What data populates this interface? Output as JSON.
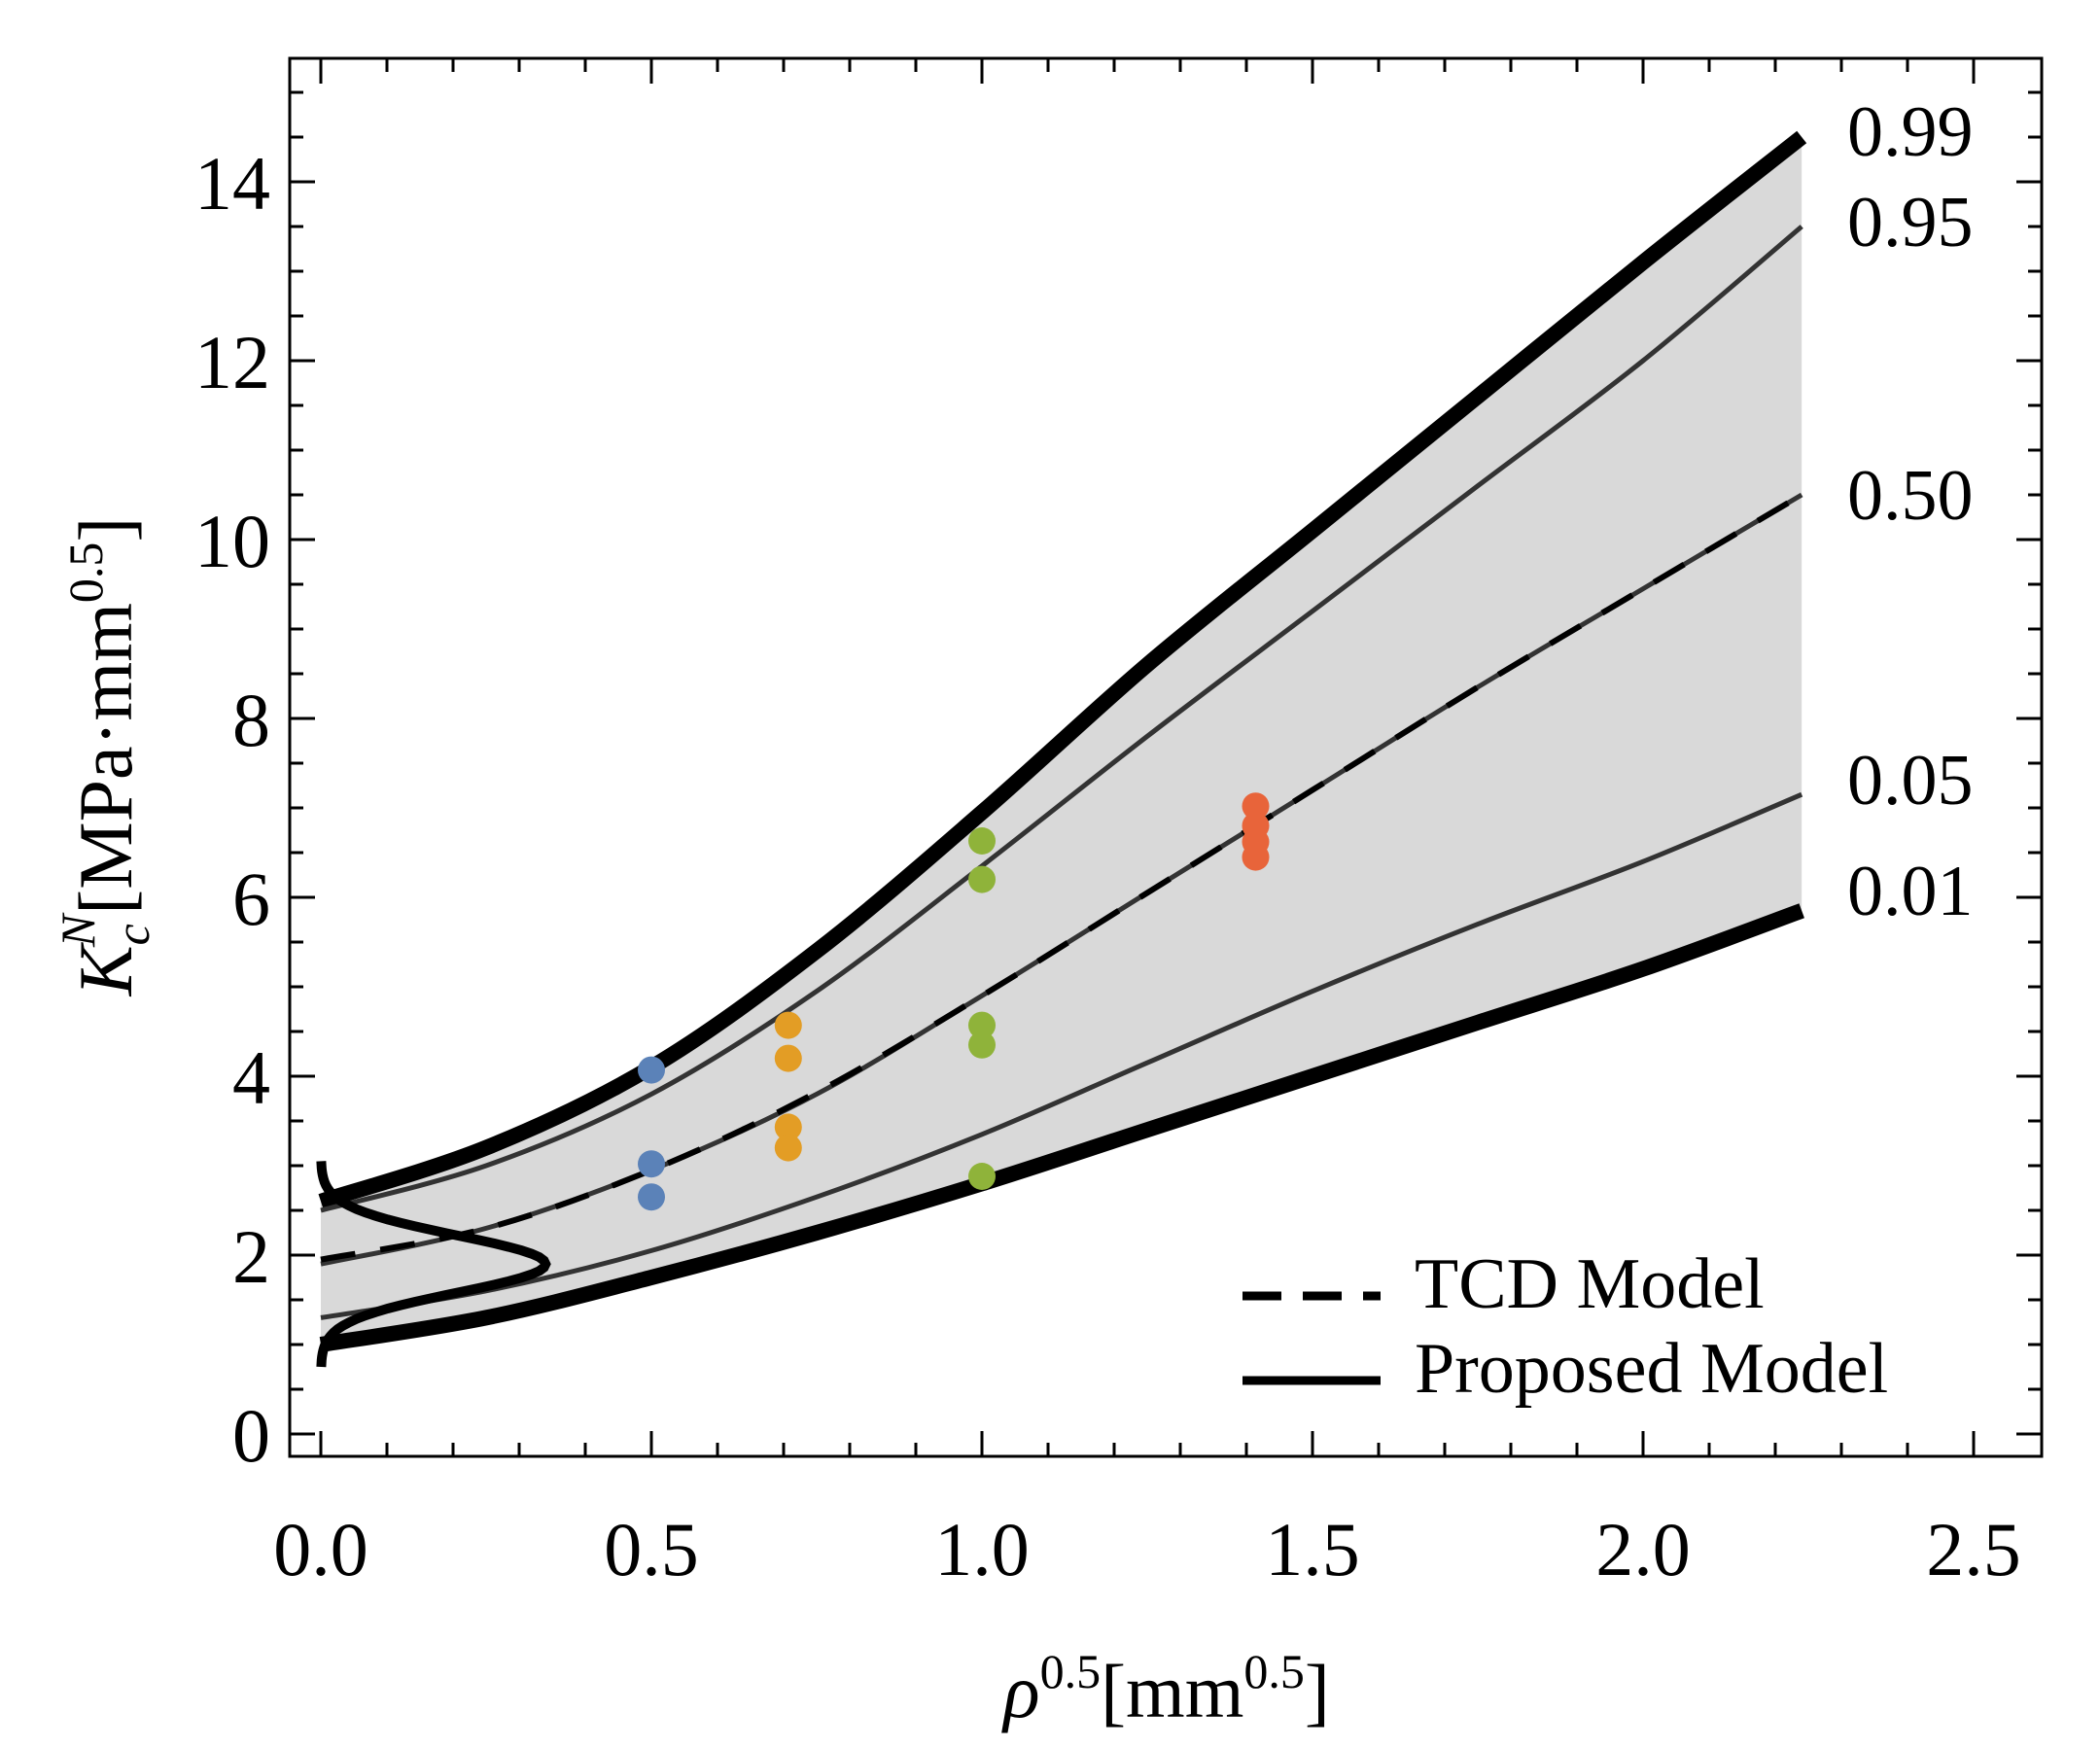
{
  "chart_data": {
    "type": "line",
    "xlabel": {
      "base": "ρ",
      "exp": "0.5",
      "unit_open": "[mm",
      "unit_exp": "0.5",
      "unit_close": "]"
    },
    "ylabel": {
      "base": "K",
      "sub": "c",
      "sup": "N",
      "unit_open": "[MPa·mm",
      "unit_exp": "0.5",
      "unit_close": "]"
    },
    "xlim": [
      -0.05,
      2.6
    ],
    "ylim": [
      -0.3,
      15.3
    ],
    "xticks": [
      "0.0",
      "0.5",
      "1.0",
      "1.5",
      "2.0",
      "2.5"
    ],
    "yticks": [
      "0",
      "2",
      "4",
      "6",
      "8",
      "10",
      "12",
      "14"
    ],
    "grid": false,
    "legend_position": "bottom-right",
    "legend": [
      {
        "label": "TCD Model",
        "style": "dashed"
      },
      {
        "label": "Proposed Model",
        "style": "solid"
      }
    ],
    "quantile_labels": [
      "0.99",
      "0.95",
      "0.50",
      "0.05",
      "0.01"
    ],
    "quantile_curves": [
      {
        "name": "0.99",
        "points": [
          [
            0.0,
            2.6
          ],
          [
            0.25,
            3.2
          ],
          [
            0.5,
            4.1
          ],
          [
            0.75,
            5.4
          ],
          [
            1.0,
            6.95
          ],
          [
            1.25,
            8.6
          ],
          [
            1.5,
            10.1
          ],
          [
            1.75,
            11.6
          ],
          [
            2.0,
            13.1
          ],
          [
            2.24,
            14.5
          ]
        ]
      },
      {
        "name": "0.95",
        "points": [
          [
            0.0,
            2.5
          ],
          [
            0.25,
            3.0
          ],
          [
            0.5,
            3.8
          ],
          [
            0.75,
            4.95
          ],
          [
            1.0,
            6.35
          ],
          [
            1.25,
            7.8
          ],
          [
            1.5,
            9.2
          ],
          [
            1.75,
            10.6
          ],
          [
            2.0,
            12.0
          ],
          [
            2.24,
            13.5
          ]
        ]
      },
      {
        "name": "0.50",
        "points": [
          [
            0.0,
            1.9
          ],
          [
            0.25,
            2.3
          ],
          [
            0.5,
            2.95
          ],
          [
            0.75,
            3.8
          ],
          [
            1.0,
            4.9
          ],
          [
            1.25,
            6.05
          ],
          [
            1.5,
            7.2
          ],
          [
            1.75,
            8.35
          ],
          [
            2.0,
            9.45
          ],
          [
            2.24,
            10.5
          ]
        ]
      },
      {
        "name": "0.05",
        "points": [
          [
            0.0,
            1.3
          ],
          [
            0.25,
            1.6
          ],
          [
            0.5,
            2.05
          ],
          [
            0.75,
            2.65
          ],
          [
            1.0,
            3.35
          ],
          [
            1.25,
            4.15
          ],
          [
            1.5,
            4.95
          ],
          [
            1.75,
            5.7
          ],
          [
            2.0,
            6.4
          ],
          [
            2.24,
            7.15
          ]
        ]
      },
      {
        "name": "0.01",
        "points": [
          [
            0.0,
            1.0
          ],
          [
            0.25,
            1.3
          ],
          [
            0.5,
            1.75
          ],
          [
            0.75,
            2.25
          ],
          [
            1.0,
            2.8
          ],
          [
            1.25,
            3.4
          ],
          [
            1.5,
            4.0
          ],
          [
            1.75,
            4.6
          ],
          [
            2.0,
            5.2
          ],
          [
            2.24,
            5.85
          ]
        ]
      }
    ],
    "tcd_model": {
      "points": [
        [
          0.0,
          1.95
        ],
        [
          0.25,
          2.3
        ],
        [
          0.5,
          2.95
        ],
        [
          0.75,
          3.82
        ],
        [
          1.0,
          4.9
        ],
        [
          1.25,
          6.05
        ],
        [
          1.5,
          7.2
        ],
        [
          1.75,
          8.35
        ],
        [
          2.0,
          9.45
        ],
        [
          2.24,
          10.5
        ]
      ]
    },
    "density_at_zero": {
      "mode_y": 1.9,
      "peak_x": 0.34,
      "y_range": [
        0.75,
        3.05
      ]
    },
    "series": [
      {
        "color": "#5b82b8",
        "points": [
          [
            0.5,
            4.07
          ],
          [
            0.5,
            3.02
          ],
          [
            0.5,
            2.65
          ]
        ]
      },
      {
        "color": "#e39d25",
        "points": [
          [
            0.707,
            4.57
          ],
          [
            0.707,
            4.2
          ],
          [
            0.707,
            3.43
          ],
          [
            0.707,
            3.2
          ]
        ]
      },
      {
        "color": "#8fb33a",
        "points": [
          [
            1.0,
            6.63
          ],
          [
            1.0,
            6.2
          ],
          [
            1.0,
            4.57
          ],
          [
            1.0,
            4.35
          ],
          [
            1.0,
            2.88
          ]
        ]
      },
      {
        "color": "#e8643a",
        "points": [
          [
            1.414,
            7.02
          ],
          [
            1.414,
            6.8
          ],
          [
            1.414,
            6.62
          ],
          [
            1.414,
            6.45
          ]
        ]
      }
    ],
    "band_fill": "#d9d9d9"
  }
}
